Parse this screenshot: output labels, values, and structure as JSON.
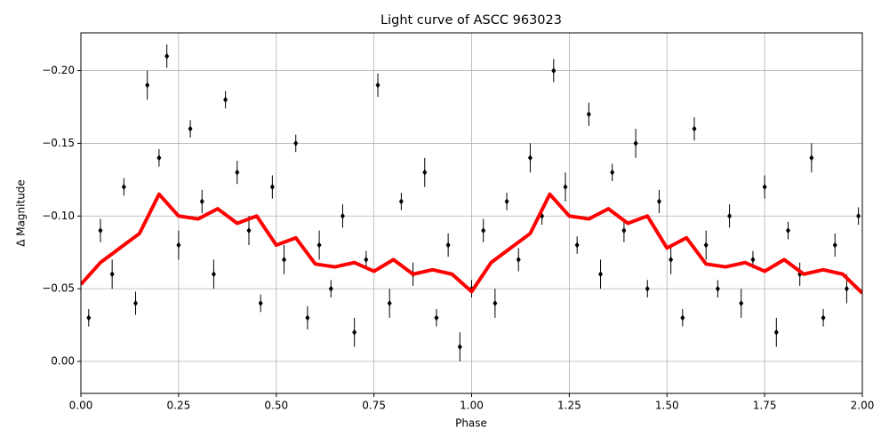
{
  "chart_data": {
    "type": "scatter",
    "title": "Light curve of ASCC 963023",
    "x_label": "Phase",
    "y_label": "Δ Magnitude",
    "xlim": [
      0,
      2
    ],
    "ylim": [
      0.022,
      -0.226
    ],
    "grid": true,
    "xticks": [
      {
        "value": 0,
        "label": "0.00"
      },
      0.25,
      {
        "value": 0.5,
        "label": "0.50"
      },
      0.75,
      {
        "value": 1,
        "label": "1.00"
      },
      1.25,
      {
        "value": 1.5,
        "label": "1.50"
      },
      1.75,
      {
        "value": 2,
        "label": "2.00"
      }
    ],
    "yticks": [
      {
        "value": 0,
        "label": "0.00"
      },
      {
        "value": -0.05,
        "label": "−0.05"
      },
      {
        "value": -0.1,
        "label": "−0.10"
      },
      {
        "value": -0.15,
        "label": "−0.15"
      },
      {
        "value": -0.2,
        "label": "−0.20"
      }
    ],
    "series": [
      {
        "type": "errorbar",
        "color": "#000000",
        "x": [
          0.02,
          0.05,
          0.08,
          0.11,
          0.14,
          0.17,
          0.2,
          0.22,
          0.25,
          0.28,
          0.31,
          0.34,
          0.37,
          0.4,
          0.43,
          0.46,
          0.49,
          0.52,
          0.55,
          0.58,
          0.61,
          0.64,
          0.67,
          0.7,
          0.73,
          0.76,
          0.79,
          0.82,
          0.85,
          0.88,
          0.91,
          0.94,
          0.97,
          1.0,
          1.03,
          1.06,
          1.09,
          1.12,
          1.15,
          1.18,
          1.21,
          1.24,
          1.27,
          1.3,
          1.33,
          1.36,
          1.39,
          1.42,
          1.45,
          1.48,
          1.51,
          1.54,
          1.57,
          1.6,
          1.63,
          1.66,
          1.69,
          1.72,
          1.75,
          1.78,
          1.81,
          1.84,
          1.87,
          1.9,
          1.93,
          1.96,
          1.99
        ],
        "values": [
          -0.03,
          -0.09,
          -0.06,
          -0.12,
          -0.04,
          -0.19,
          -0.14,
          -0.21,
          -0.08,
          -0.16,
          -0.11,
          -0.06,
          -0.18,
          -0.13,
          -0.09,
          -0.04,
          -0.12,
          -0.07,
          -0.15,
          -0.03,
          -0.08,
          -0.05,
          -0.1,
          -0.02,
          -0.07,
          -0.19,
          -0.04,
          -0.11,
          -0.06,
          -0.13,
          -0.03,
          -0.08,
          -0.01,
          -0.05,
          -0.09,
          -0.04,
          -0.11,
          -0.07,
          -0.14,
          -0.1,
          -0.2,
          -0.12,
          -0.08,
          -0.17,
          -0.06,
          -0.13,
          -0.09,
          -0.15,
          -0.05,
          -0.11,
          -0.07,
          -0.03,
          -0.16,
          -0.08,
          -0.05,
          -0.1,
          -0.04,
          -0.07,
          -0.12,
          -0.02,
          -0.09,
          -0.06,
          -0.14,
          -0.03,
          -0.08,
          -0.05,
          -0.1
        ],
        "errors": [
          0.006,
          0.008,
          0.01,
          0.006,
          0.008,
          0.01,
          0.006,
          0.008,
          0.01,
          0.006,
          0.008,
          0.01,
          0.006,
          0.008,
          0.01,
          0.006,
          0.008,
          0.01,
          0.006,
          0.008,
          0.01,
          0.006,
          0.008,
          0.01,
          0.006,
          0.008,
          0.01,
          0.006,
          0.008,
          0.01,
          0.006,
          0.008,
          0.01,
          0.006,
          0.008,
          0.01,
          0.006,
          0.008,
          0.01,
          0.006,
          0.008,
          0.01,
          0.006,
          0.008,
          0.01,
          0.006,
          0.008,
          0.01,
          0.006,
          0.008,
          0.01,
          0.006,
          0.008,
          0.01,
          0.006,
          0.008,
          0.01,
          0.006,
          0.008,
          0.01,
          0.006,
          0.008,
          0.01,
          0.006,
          0.008,
          0.01,
          0.006
        ]
      },
      {
        "type": "line",
        "color": "#ff0000",
        "x": [
          0,
          0.05,
          0.1,
          0.15,
          0.2,
          0.25,
          0.3,
          0.35,
          0.4,
          0.45,
          0.5,
          0.55,
          0.6,
          0.65,
          0.7,
          0.75,
          0.8,
          0.85,
          0.9,
          0.95,
          1.0,
          1.05,
          1.1,
          1.15,
          1.2,
          1.25,
          1.3,
          1.35,
          1.4,
          1.45,
          1.5,
          1.55,
          1.6,
          1.65,
          1.7,
          1.75,
          1.8,
          1.85,
          1.9,
          1.95,
          2.0
        ],
        "values": [
          -0.053,
          -0.068,
          -0.078,
          -0.088,
          -0.115,
          -0.1,
          -0.098,
          -0.105,
          -0.095,
          -0.1,
          -0.08,
          -0.085,
          -0.067,
          -0.065,
          -0.068,
          -0.062,
          -0.07,
          -0.06,
          -0.063,
          -0.06,
          -0.048,
          -0.068,
          -0.078,
          -0.088,
          -0.115,
          -0.1,
          -0.098,
          -0.105,
          -0.095,
          -0.1,
          -0.078,
          -0.085,
          -0.067,
          -0.065,
          -0.068,
          -0.062,
          -0.07,
          -0.06,
          -0.063,
          -0.06,
          -0.047
        ]
      }
    ]
  }
}
